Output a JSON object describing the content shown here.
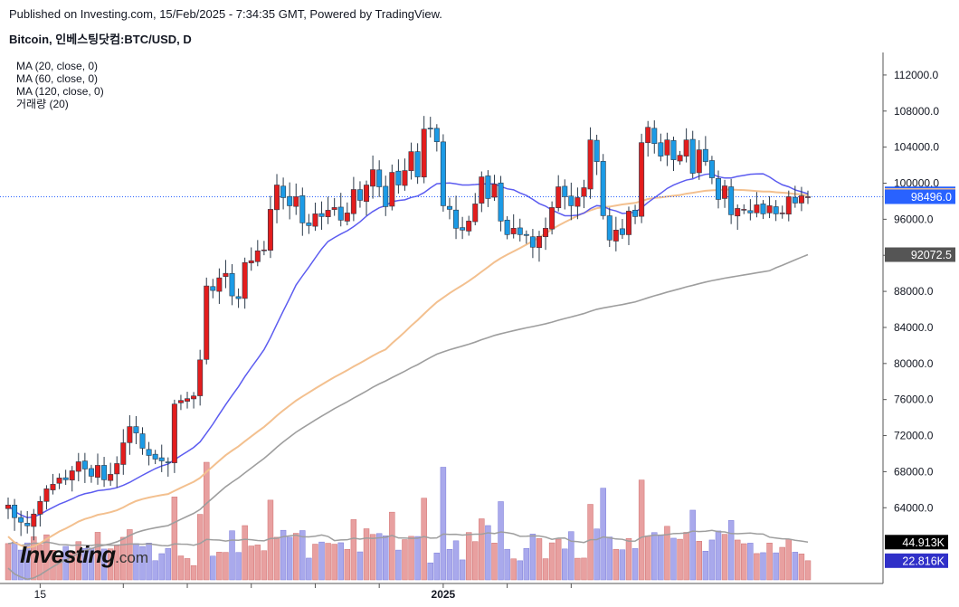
{
  "header": {
    "published": "Published on Investing.com, 15/Feb/2025 - 7:34:35 GMT, Powered by TradingView.",
    "symbol": "Bitcoin, 인베스팅닷컴:BTC/USD, D"
  },
  "legend": {
    "items": [
      "MA (20, close, 0)",
      "MA (60, close, 0)",
      "MA (120, close, 0)",
      "거래량 (20)"
    ]
  },
  "logo": {
    "name": "Investing",
    "suffix": ".com"
  },
  "colors": {
    "up": "#e31d1d",
    "down": "#1c9be6",
    "ma20": "#5c5cf0",
    "ma60": "#f3c08f",
    "ma120": "#9e9e9e",
    "vol_up": "#e8a0a0",
    "vol_down": "#a9a9ec",
    "vol_ma": "#9e9e9e",
    "price_line": "#2962ff"
  },
  "chart_data": {
    "type": "candlestick",
    "title": "Bitcoin, 인베스팅닷컴:BTC/USD, D",
    "ylim": [
      56000,
      114500
    ],
    "yticks": [
      64000,
      68000,
      72000,
      76000,
      80000,
      84000,
      88000,
      92000,
      96000,
      100000,
      104000,
      108000,
      112000
    ],
    "ytick_labels": [
      "64000.0",
      "68000.0",
      "72000.0",
      "76000.0",
      "80000.0",
      "84000.0",
      "88000.0",
      "92000.0",
      "96000.0",
      "100000.0",
      "104000.0",
      "108000.0",
      "112000.0"
    ],
    "xtick_labels": [
      {
        "label": "15",
        "i": 5
      },
      {
        "label": "",
        "i": 18
      },
      {
        "label": "",
        "i": 28
      },
      {
        "label": "",
        "i": 38
      },
      {
        "label": "",
        "i": 48
      },
      {
        "label": "",
        "i": 58
      },
      {
        "label": "2025",
        "i": 68
      },
      {
        "label": "",
        "i": 78
      },
      {
        "label": "",
        "i": 88
      }
    ],
    "closes": [
      64300,
      62900,
      62400,
      62000,
      63300,
      64700,
      66100,
      66600,
      67300,
      67100,
      68100,
      69100,
      68300,
      67500,
      68700,
      67100,
      67700,
      68900,
      71200,
      73000,
      72300,
      70600,
      69800,
      69400,
      69200,
      69000,
      75500,
      75900,
      76100,
      76400,
      80400,
      88600,
      88100,
      89500,
      90000,
      87500,
      87200,
      91200,
      91400,
      92500,
      92600,
      97100,
      99800,
      98400,
      97500,
      98500,
      95600,
      95300,
      96600,
      96300,
      97000,
      97300,
      95900,
      96700,
      99300,
      98100,
      99800,
      101500,
      99600,
      97400,
      101200,
      99800,
      101400,
      103500,
      100700,
      106000,
      106100,
      104600,
      97500,
      97100,
      95000,
      94800,
      95800,
      97700,
      100700,
      98300,
      99900,
      95800,
      94300,
      95000,
      94300,
      94200,
      92900,
      94100,
      95000,
      97300,
      99600,
      98500,
      97500,
      98400,
      99500,
      104800,
      102400,
      96400,
      93700,
      94800,
      94300,
      96900,
      96300,
      104500,
      106200,
      104400,
      103000,
      104800,
      102600,
      103100,
      104800,
      101100,
      103700,
      102400,
      100600,
      98200,
      99700,
      96500,
      97200,
      97100,
      96700,
      97600,
      96600,
      97500,
      96600,
      96700,
      98500,
      97800,
      98600,
      98496
    ]
  }
}
